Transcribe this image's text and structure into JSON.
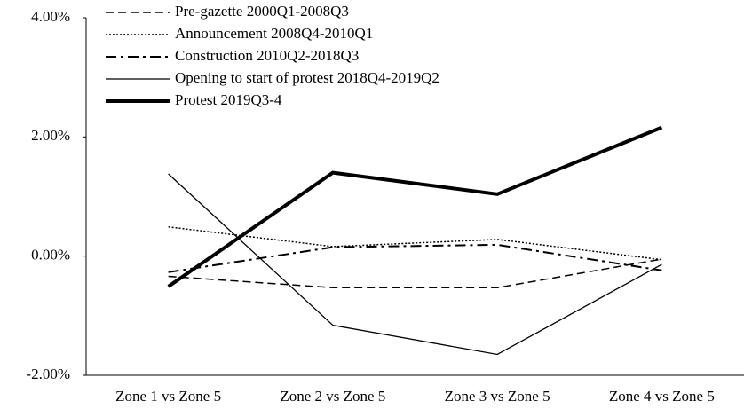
{
  "chart_data": {
    "type": "line",
    "categories": [
      "Zone 1 vs Zone 5",
      "Zone 2 vs Zone 5",
      "Zone 3 vs Zone 5",
      "Zone 4 vs Zone 5"
    ],
    "series": [
      {
        "name": "Pre-gazette 2000Q1-2008Q3",
        "color": "#000000",
        "style": "dashed",
        "width": 1.5,
        "values": [
          -0.34,
          -0.53,
          -0.53,
          -0.05
        ]
      },
      {
        "name": "Announcement 2008Q4-2010Q1",
        "color": "#000000",
        "style": "dotted",
        "width": 1.5,
        "values": [
          0.49,
          0.16,
          0.28,
          -0.06
        ]
      },
      {
        "name": "Construction 2010Q2-2018Q3",
        "color": "#000000",
        "style": "dashdot",
        "width": 2,
        "values": [
          -0.27,
          0.15,
          0.19,
          -0.24
        ]
      },
      {
        "name": "Opening to start of protest 2018Q4-2019Q2",
        "color": "#000000",
        "style": "solid",
        "width": 1.3,
        "values": [
          1.38,
          -1.16,
          -1.65,
          -0.14
        ]
      },
      {
        "name": "Protest 2019Q3-4",
        "color": "#000000",
        "style": "solid",
        "width": 4,
        "values": [
          -0.51,
          1.4,
          1.04,
          2.16
        ]
      }
    ],
    "ylim": [
      -2,
      4
    ],
    "yticks": [
      {
        "value": -2,
        "label": "-2.00%"
      },
      {
        "value": 0,
        "label": "0.00%"
      },
      {
        "value": 2,
        "label": "2.00%"
      },
      {
        "value": 4,
        "label": "4.00%"
      }
    ],
    "grid": false,
    "legend": "top-left"
  }
}
